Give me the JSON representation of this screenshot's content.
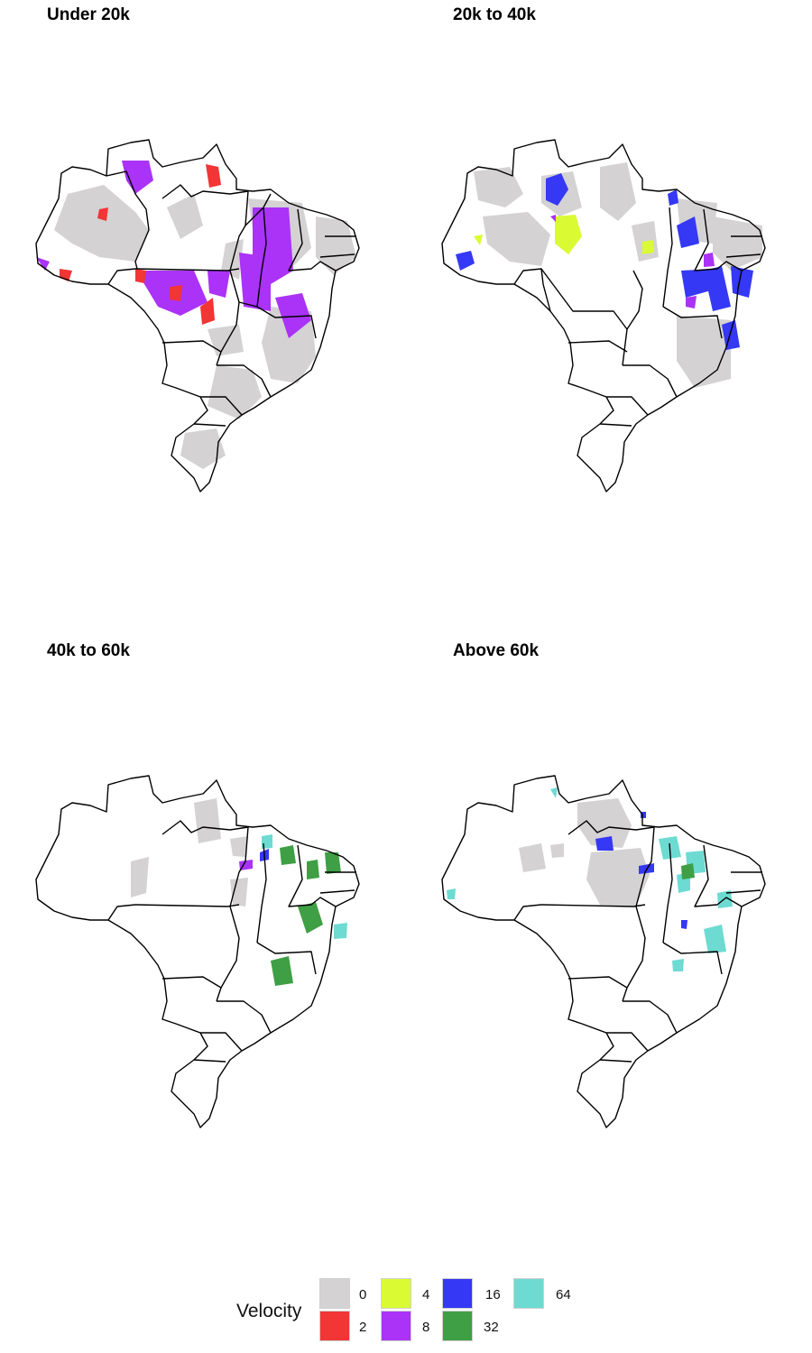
{
  "legend": {
    "title": "Velocity",
    "items": [
      {
        "value": "0",
        "color": "#d4d2d2"
      },
      {
        "value": "2",
        "color": "#f23535"
      },
      {
        "value": "4",
        "color": "#dafb33"
      },
      {
        "value": "8",
        "color": "#aa33f7"
      },
      {
        "value": "16",
        "color": "#3538f5"
      },
      {
        "value": "32",
        "color": "#3f9f45"
      },
      {
        "value": "64",
        "color": "#6ddbd1"
      }
    ]
  },
  "panels": [
    {
      "id": "under-20k",
      "title": "Under 20k",
      "colors": [
        "0",
        "2",
        "8"
      ]
    },
    {
      "id": "20k-to-40k",
      "title": "20k to 40k",
      "colors": [
        "0",
        "4",
        "8",
        "16"
      ]
    },
    {
      "id": "40k-to-60k",
      "title": "40k to 60k",
      "colors": [
        "0",
        "16",
        "32",
        "64"
      ]
    },
    {
      "id": "above-60k",
      "title": "Above 60k",
      "colors": [
        "0",
        "16",
        "32",
        "64"
      ]
    }
  ]
}
